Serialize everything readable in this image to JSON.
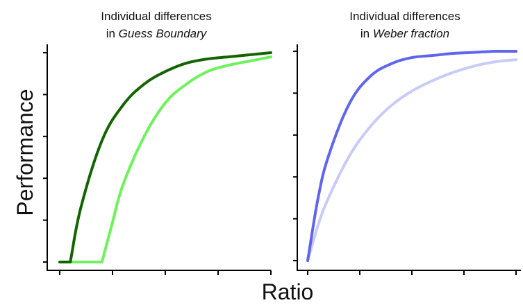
{
  "xlabel": "Ratio",
  "ylabel": "Performance",
  "colors": {
    "dark_green": "#136400",
    "light_green": "#6ef25b",
    "dark_blue": "#6065ee",
    "light_blue": "#c8cbf6",
    "axis": "#000000"
  },
  "chart_data": [
    {
      "type": "line",
      "title_line1": "Individual differences",
      "title_line2_prefix": "in ",
      "title_line2_emph": "Guess Boundary",
      "grid": false,
      "legend": "none",
      "xlim": [
        0,
        1
      ],
      "ylim": [
        0,
        1
      ],
      "series": [
        {
          "color": "#136400",
          "x": [
            0.0,
            0.05,
            0.1,
            0.2,
            0.3,
            0.4,
            0.5,
            0.6,
            0.7,
            0.8,
            0.9,
            1.0
          ],
          "y": [
            0.0,
            0.0,
            0.26,
            0.58,
            0.75,
            0.85,
            0.91,
            0.95,
            0.97,
            0.98,
            0.99,
            1.0
          ]
        },
        {
          "color": "#6ef25b",
          "x": [
            0.0,
            0.2,
            0.25,
            0.3,
            0.4,
            0.5,
            0.6,
            0.7,
            0.8,
            0.9,
            1.0
          ],
          "y": [
            0.0,
            0.0,
            0.19,
            0.37,
            0.6,
            0.76,
            0.85,
            0.91,
            0.94,
            0.96,
            0.98
          ]
        }
      ]
    },
    {
      "type": "line",
      "title_line1": "Individual differences",
      "title_line2_prefix": "in ",
      "title_line2_emph": "Weber fraction",
      "grid": false,
      "legend": "none",
      "xlim": [
        0,
        1
      ],
      "ylim": [
        0,
        1
      ],
      "series": [
        {
          "color": "#6065ee",
          "x": [
            0.0,
            0.05,
            0.1,
            0.2,
            0.3,
            0.4,
            0.5,
            0.6,
            0.7,
            0.8,
            0.9,
            1.0
          ],
          "y": [
            0.0,
            0.3,
            0.5,
            0.75,
            0.88,
            0.94,
            0.97,
            0.98,
            0.99,
            0.995,
            1.0,
            1.0
          ]
        },
        {
          "color": "#c8cbf6",
          "x": [
            0.0,
            0.05,
            0.1,
            0.2,
            0.3,
            0.4,
            0.5,
            0.6,
            0.7,
            0.8,
            0.9,
            1.0
          ],
          "y": [
            0.0,
            0.17,
            0.3,
            0.5,
            0.64,
            0.74,
            0.81,
            0.86,
            0.9,
            0.93,
            0.95,
            0.96
          ]
        }
      ]
    }
  ]
}
